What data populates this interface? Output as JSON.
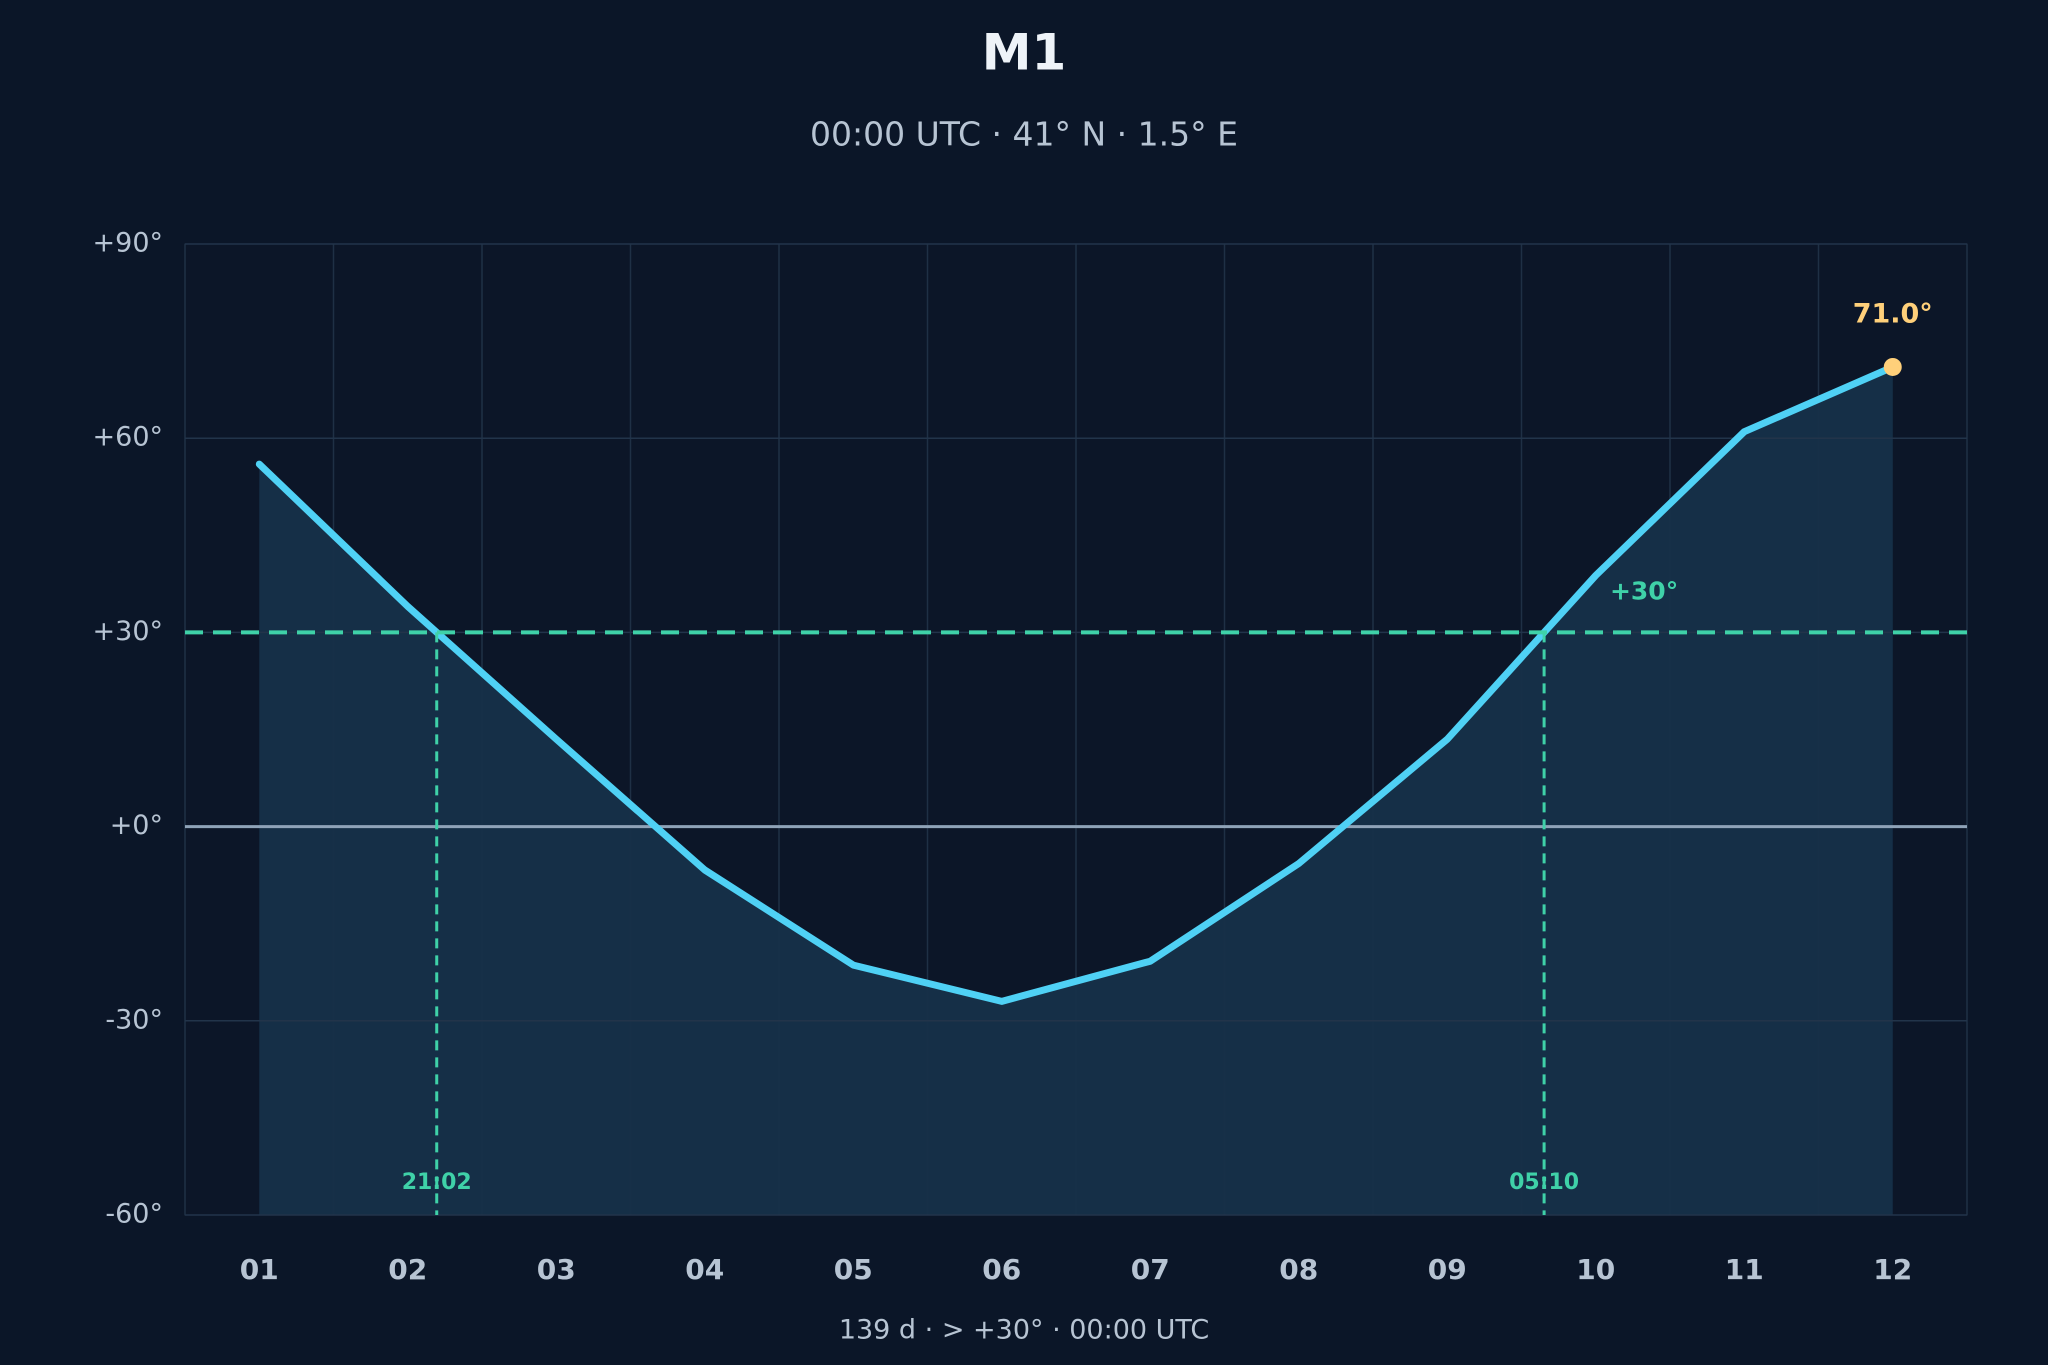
{
  "chart_data": {
    "type": "area",
    "title": "M1",
    "subtitle": "00:00 UTC · 41° N · 1.5° E",
    "footer": "139 d  ·  > +30°  ·  00:00 UTC",
    "categories": [
      "01",
      "02",
      "03",
      "04",
      "05",
      "06",
      "07",
      "08",
      "09",
      "10",
      "11",
      "12"
    ],
    "values": [
      56,
      34,
      13.5,
      -6.7,
      -21.4,
      -27,
      -20.8,
      -5.7,
      13.5,
      38.8,
      61,
      71.0
    ],
    "color": "#4fd1f5",
    "ylim": [
      -60,
      90
    ],
    "yticks": [
      {
        "value": -60,
        "label": "-60°"
      },
      {
        "value": -30,
        "label": "-30°"
      },
      {
        "value": 0,
        "label": "+0°"
      },
      {
        "value": 30,
        "label": "+30°"
      },
      {
        "value": 60,
        "label": "+60°"
      },
      {
        "value": 90,
        "label": "+90°"
      }
    ],
    "grid": true,
    "threshold": {
      "value": 30,
      "label": "+30°",
      "color": "#3fd1a8"
    },
    "crossings": [
      {
        "label": "21:02"
      },
      {
        "label": "05:10"
      }
    ],
    "peak": {
      "category": "12",
      "value": 71.0,
      "label": "71.0°",
      "color": "#ffd07a"
    }
  }
}
